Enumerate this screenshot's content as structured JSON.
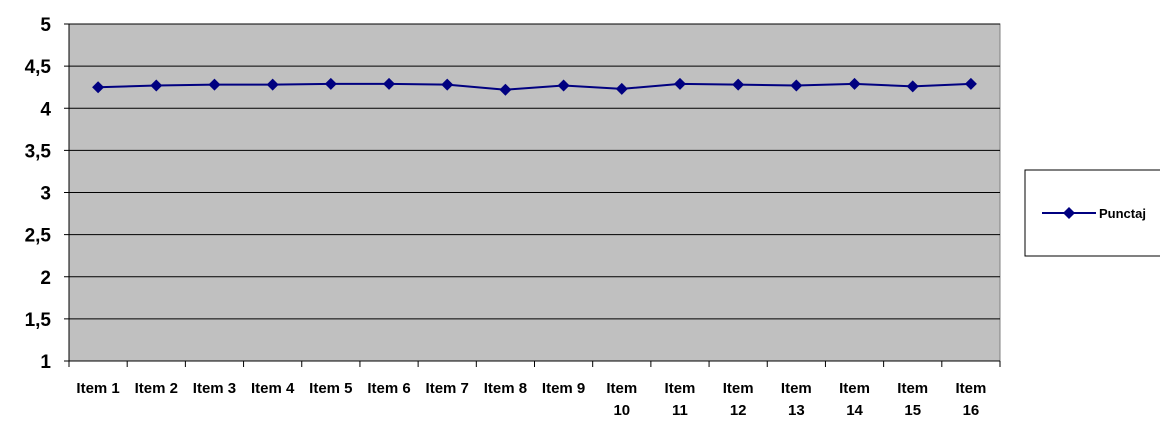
{
  "chart_data": {
    "type": "line",
    "categories": [
      "Item 1",
      "Item 2",
      "Item 3",
      "Item 4",
      "Item 5",
      "Item 6",
      "Item 7",
      "Item 8",
      "Item 9",
      "Item 10",
      "Item 11",
      "Item 12",
      "Item 13",
      "Item 14",
      "Item 15",
      "Item 16"
    ],
    "series": [
      {
        "name": "Punctaj",
        "values": [
          4.25,
          4.27,
          4.28,
          4.28,
          4.29,
          4.29,
          4.28,
          4.22,
          4.27,
          4.23,
          4.29,
          4.28,
          4.27,
          4.29,
          4.26,
          4.29
        ]
      }
    ],
    "yticks": [
      "1",
      "1,5",
      "2",
      "2,5",
      "3",
      "3,5",
      "4",
      "4,5",
      "5"
    ],
    "ylim": [
      1,
      5
    ],
    "grid": true,
    "legend_position": "right",
    "colors": {
      "series": "#000080",
      "plot_background": "#c0c0c0",
      "gridline": "#000000"
    },
    "marker": "diamond"
  }
}
